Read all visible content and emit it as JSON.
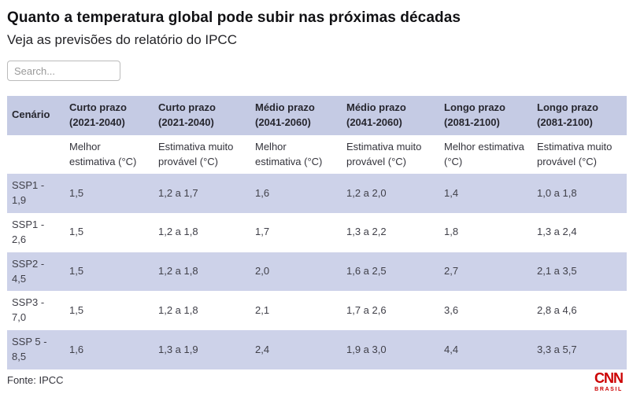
{
  "header": {
    "title": "Quanto a temperatura global pode subir nas próximas décadas",
    "subtitle": "Veja as previsões do relatório do IPCC"
  },
  "search": {
    "placeholder": "Search..."
  },
  "table": {
    "headers": [
      {
        "group": "Cenário",
        "sub": ""
      },
      {
        "group": "Curto prazo (2021-2040)",
        "sub": "Melhor estimativa (°C)"
      },
      {
        "group": "Curto prazo (2021-2040)",
        "sub": "Estimativa muito provável (°C)"
      },
      {
        "group": "Médio prazo (2041-2060)",
        "sub": "Melhor estimativa (°C)"
      },
      {
        "group": "Médio prazo (2041-2060)",
        "sub": "Estimativa muito provável (°C)"
      },
      {
        "group": "Longo prazo (2081-2100)",
        "sub": "Melhor estimativa (°C)"
      },
      {
        "group": "Longo prazo (2081-2100)",
        "sub": "Estimativa muito provável (°C)"
      }
    ],
    "rows": [
      {
        "scenario": "SSP1 - 1,9",
        "values": [
          "1,5",
          "1,2 a 1,7",
          "1,6",
          "1,2 a 2,0",
          "1,4",
          "1,0 a 1,8"
        ]
      },
      {
        "scenario": "SSP1 - 2,6",
        "values": [
          "1,5",
          "1,2 a 1,8",
          "1,7",
          "1,3 a 2,2",
          "1,8",
          "1,3 a 2,4"
        ]
      },
      {
        "scenario": "SSP2 - 4,5",
        "values": [
          "1,5",
          "1,2 a 1,8",
          "2,0",
          "1,6 a 2,5",
          "2,7",
          "2,1 a 3,5"
        ]
      },
      {
        "scenario": "SSP3 - 7,0",
        "values": [
          "1,5",
          "1,2 a 1,8",
          "2,1",
          "1,7 a 2,6",
          "3,6",
          "2,8 a 4,6"
        ]
      },
      {
        "scenario": "SSP 5 - 8,5",
        "values": [
          "1,6",
          "1,3 a 1,9",
          "2,4",
          "1,9 a 3,0",
          "4,4",
          "3,3 a 5,7"
        ]
      }
    ]
  },
  "footer": {
    "source": "Fonte: IPCC",
    "logo_text": "CNN",
    "logo_subtext": "BRASIL"
  },
  "colors": {
    "header_bg": "#c5cbe4",
    "stripe_bg": "#cdd2e9",
    "brand_red": "#cc0000"
  },
  "chart_data": {
    "type": "table",
    "title": "Quanto a temperatura global pode subir nas próximas décadas",
    "subtitle": "Veja as previsões do relatório do IPCC",
    "columns": [
      "Cenário",
      "Curto prazo (2021-2040) — Melhor estimativa (°C)",
      "Curto prazo (2021-2040) — Estimativa muito provável (°C)",
      "Médio prazo (2041-2060) — Melhor estimativa (°C)",
      "Médio prazo (2041-2060) — Estimativa muito provável (°C)",
      "Longo prazo (2081-2100) — Melhor estimativa (°C)",
      "Longo prazo (2081-2100) — Estimativa muito provável (°C)"
    ],
    "rows": [
      [
        "SSP1 - 1,9",
        "1,5",
        "1,2 a 1,7",
        "1,6",
        "1,2 a 2,0",
        "1,4",
        "1,0 a 1,8"
      ],
      [
        "SSP1 - 2,6",
        "1,5",
        "1,2 a 1,8",
        "1,7",
        "1,3 a 2,2",
        "1,8",
        "1,3 a 2,4"
      ],
      [
        "SSP2 - 4,5",
        "1,5",
        "1,2 a 1,8",
        "2,0",
        "1,6 a 2,5",
        "2,7",
        "2,1 a 3,5"
      ],
      [
        "SSP3 - 7,0",
        "1,5",
        "1,2 a 1,8",
        "2,1",
        "1,7 a 2,6",
        "3,6",
        "2,8 a 4,6"
      ],
      [
        "SSP 5 - 8,5",
        "1,6",
        "1,3 a 1,9",
        "2,4",
        "1,9 a 3,0",
        "4,4",
        "3,3 a 5,7"
      ]
    ],
    "source": "Fonte: IPCC"
  }
}
